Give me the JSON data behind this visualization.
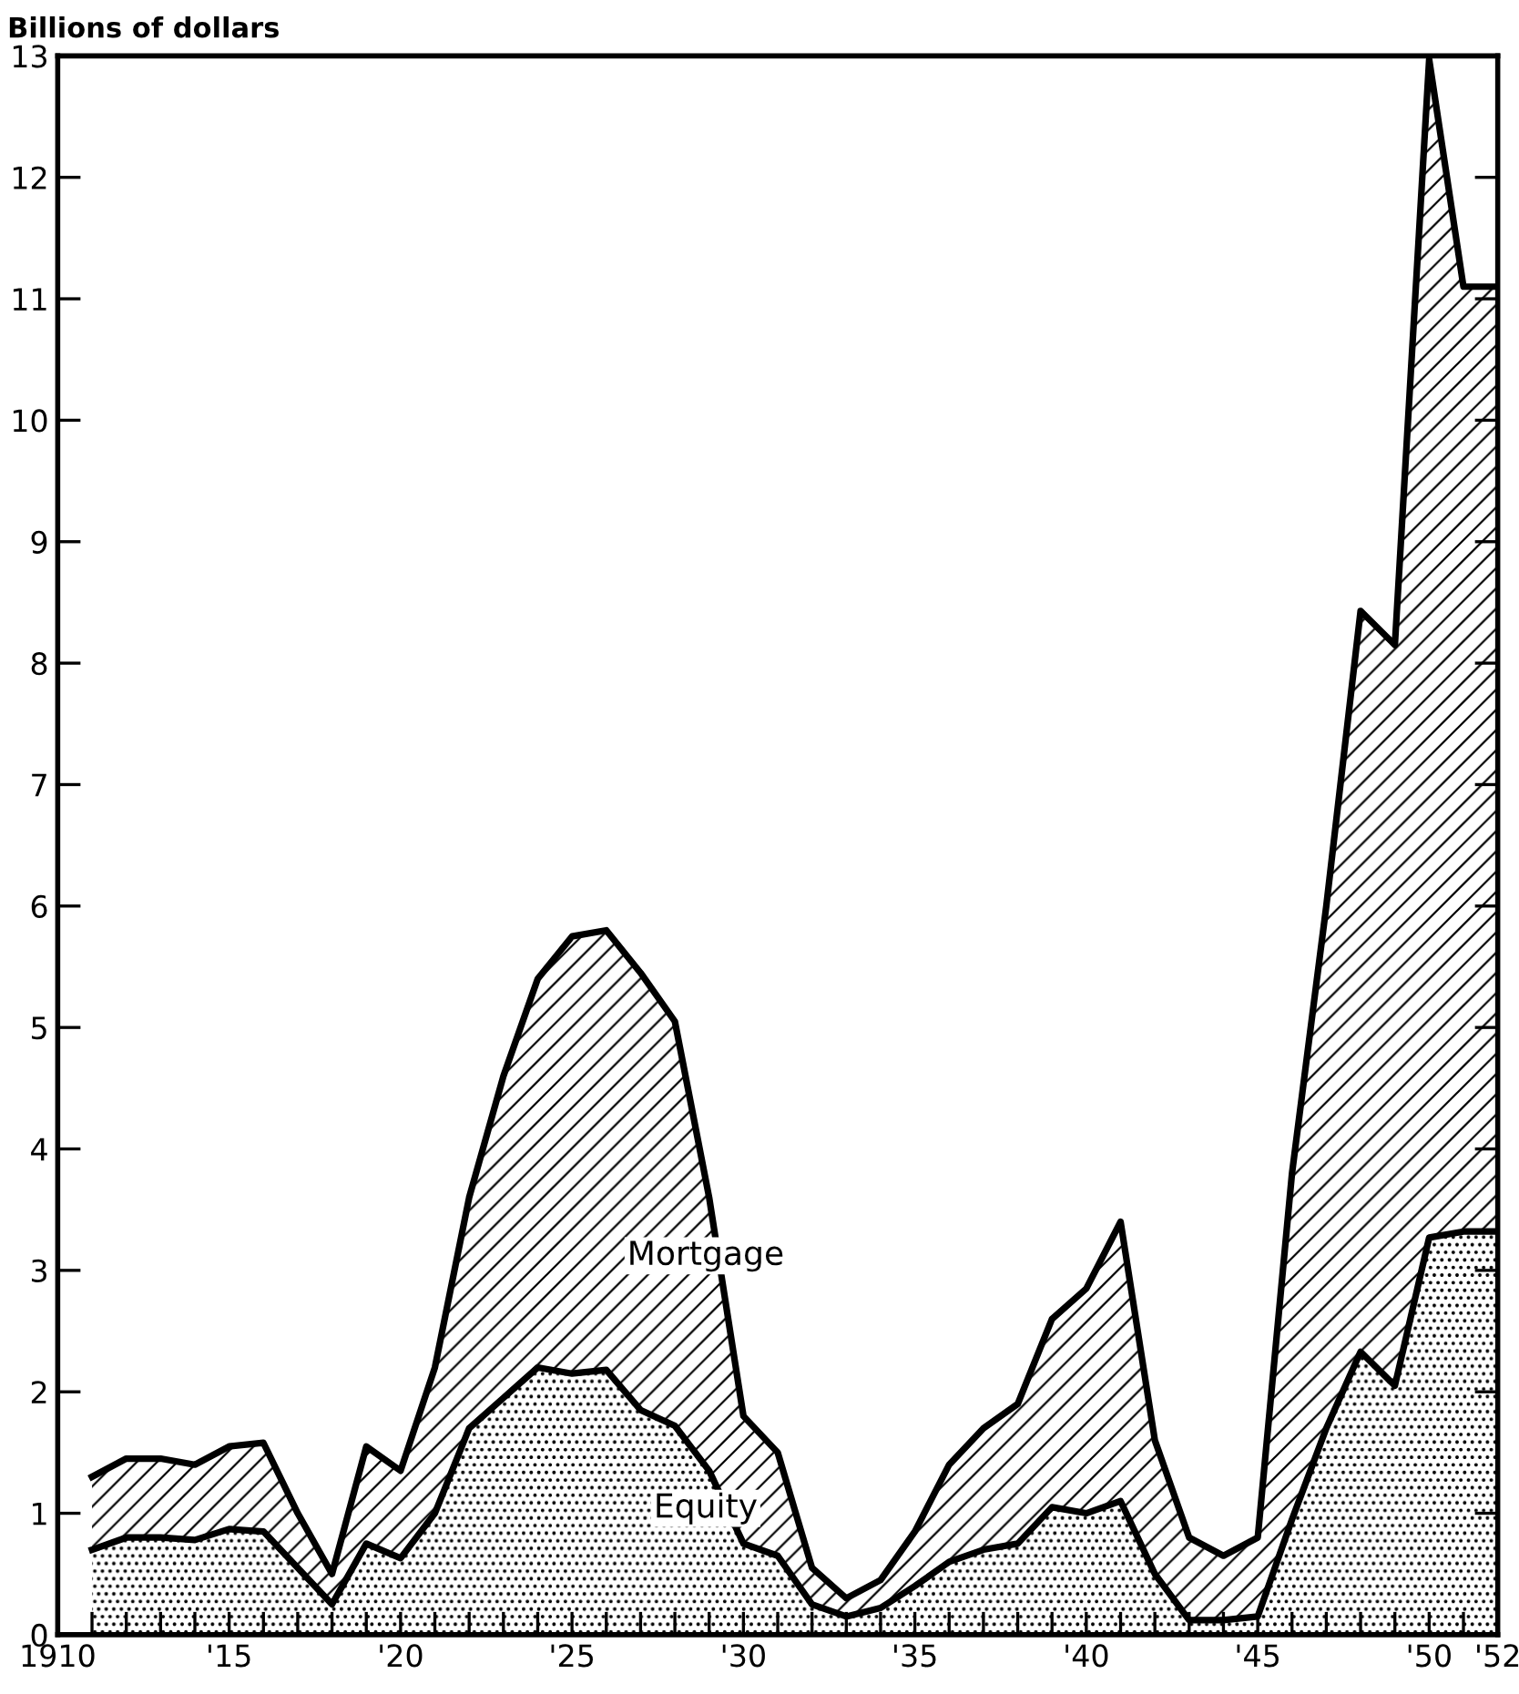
{
  "chart_data": {
    "type": "area",
    "stacked": true,
    "ylabel": "Billions of dollars",
    "x": [
      1911,
      1912,
      1913,
      1914,
      1915,
      1916,
      1917,
      1918,
      1919,
      1920,
      1921,
      1922,
      1923,
      1924,
      1925,
      1926,
      1927,
      1928,
      1929,
      1930,
      1931,
      1932,
      1933,
      1934,
      1935,
      1936,
      1937,
      1938,
      1939,
      1940,
      1941,
      1942,
      1943,
      1944,
      1945,
      1946,
      1947,
      1948,
      1949,
      1950,
      1951,
      1952
    ],
    "series": [
      {
        "name": "Equity",
        "color": "#000000",
        "values": [
          0.7,
          0.8,
          0.8,
          0.78,
          0.87,
          0.85,
          0.55,
          0.25,
          0.75,
          0.63,
          1.0,
          1.7,
          1.95,
          2.2,
          2.15,
          2.18,
          1.85,
          1.72,
          1.35,
          0.75,
          0.65,
          0.25,
          0.15,
          0.22,
          0.4,
          0.6,
          0.7,
          0.75,
          1.05,
          1.0,
          1.1,
          0.5,
          0.12,
          0.12,
          0.15,
          0.95,
          1.7,
          2.33,
          2.05,
          3.27,
          3.32,
          3.32
        ]
      },
      {
        "name": "Mortgage",
        "color": "#000000",
        "values": [
          0.6,
          0.65,
          0.65,
          0.62,
          0.68,
          0.73,
          0.45,
          0.25,
          0.8,
          0.72,
          1.2,
          1.9,
          2.65,
          3.2,
          3.6,
          3.62,
          3.6,
          3.33,
          2.25,
          1.05,
          0.85,
          0.3,
          0.15,
          0.23,
          0.45,
          0.8,
          1.0,
          1.15,
          1.55,
          1.85,
          2.3,
          1.1,
          0.68,
          0.53,
          0.65,
          2.85,
          4.3,
          6.1,
          6.1,
          9.7,
          7.78,
          7.78
        ]
      }
    ],
    "xlim": [
      1910,
      1952
    ],
    "ylim": [
      0,
      13
    ],
    "xticks": [
      {
        "value": 1910,
        "label": "1910"
      },
      {
        "value": 1911,
        "label": null
      },
      {
        "value": 1912,
        "label": null
      },
      {
        "value": 1913,
        "label": null
      },
      {
        "value": 1914,
        "label": null
      },
      {
        "value": 1915,
        "label": "'15"
      },
      {
        "value": 1916,
        "label": null
      },
      {
        "value": 1917,
        "label": null
      },
      {
        "value": 1918,
        "label": null
      },
      {
        "value": 1919,
        "label": null
      },
      {
        "value": 1920,
        "label": "'20"
      },
      {
        "value": 1921,
        "label": null
      },
      {
        "value": 1922,
        "label": null
      },
      {
        "value": 1923,
        "label": null
      },
      {
        "value": 1924,
        "label": null
      },
      {
        "value": 1925,
        "label": "'25"
      },
      {
        "value": 1926,
        "label": null
      },
      {
        "value": 1927,
        "label": null
      },
      {
        "value": 1928,
        "label": null
      },
      {
        "value": 1929,
        "label": null
      },
      {
        "value": 1930,
        "label": "'30"
      },
      {
        "value": 1931,
        "label": null
      },
      {
        "value": 1932,
        "label": null
      },
      {
        "value": 1933,
        "label": null
      },
      {
        "value": 1934,
        "label": null
      },
      {
        "value": 1935,
        "label": "'35"
      },
      {
        "value": 1936,
        "label": null
      },
      {
        "value": 1937,
        "label": null
      },
      {
        "value": 1938,
        "label": null
      },
      {
        "value": 1939,
        "label": null
      },
      {
        "value": 1940,
        "label": "'40"
      },
      {
        "value": 1941,
        "label": null
      },
      {
        "value": 1942,
        "label": null
      },
      {
        "value": 1943,
        "label": null
      },
      {
        "value": 1944,
        "label": null
      },
      {
        "value": 1945,
        "label": "'45"
      },
      {
        "value": 1946,
        "label": null
      },
      {
        "value": 1947,
        "label": null
      },
      {
        "value": 1948,
        "label": null
      },
      {
        "value": 1949,
        "label": null
      },
      {
        "value": 1950,
        "label": "'50"
      },
      {
        "value": 1951,
        "label": null
      },
      {
        "value": 1952,
        "label": "'52"
      }
    ],
    "yticks": [
      0,
      1,
      2,
      3,
      4,
      5,
      6,
      7,
      8,
      9,
      10,
      11,
      12,
      13
    ],
    "grid": false,
    "legend": false
  }
}
